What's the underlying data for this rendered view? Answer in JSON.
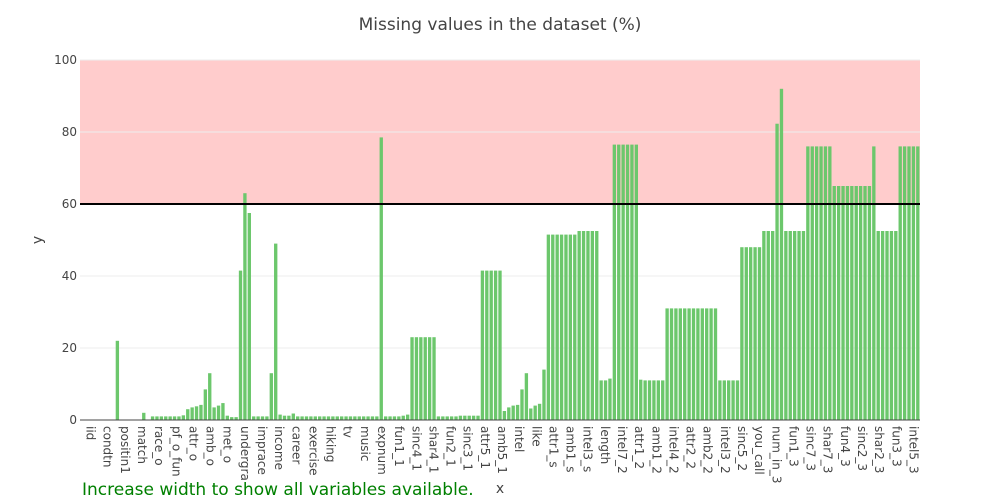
{
  "note": "Increase width to show all variables available.",
  "colors": {
    "bar": "#6cc76c",
    "danger_zone": "#ffcccc",
    "threshold_line": "#000000",
    "note": "#008000"
  },
  "chart_data": {
    "type": "bar",
    "title": "Missing values in the dataset (%)",
    "xlabel": "x",
    "ylabel": "y",
    "ylim": [
      0,
      100
    ],
    "yticks": [
      0,
      20,
      40,
      60,
      80,
      100
    ],
    "threshold": 60,
    "shaded_range": [
      60,
      100
    ],
    "grid": true,
    "tick_labels": [
      "iid",
      "condtn",
      "positin1",
      "match",
      "race_o",
      "pf_o_fun",
      "attr_o",
      "amb_o",
      "met_o",
      "undergra",
      "imprace",
      "income",
      "career",
      "exercise",
      "hiking",
      "tv",
      "music",
      "expnum",
      "fun1_1",
      "sinc4_1",
      "shar4_1",
      "fun2_1",
      "sinc3_1",
      "attr5_1",
      "amb5_1",
      "intel",
      "like",
      "attr1_s",
      "amb1_s",
      "intel3_s",
      "length",
      "intel7_2",
      "attr1_2",
      "amb1_2",
      "intel4_2",
      "attr2_2",
      "amb2_2",
      "intel3_2",
      "sinc5_2",
      "you_call",
      "num_in_3",
      "fun1_3",
      "sinc7_3",
      "shar7_3",
      "fun4_3",
      "sinc2_3",
      "shar2_3",
      "fun3_3",
      "intel5_3"
    ],
    "values": [
      0,
      0,
      0,
      0,
      0,
      0,
      0,
      0,
      22,
      0,
      0,
      0,
      0,
      0,
      2,
      0,
      1,
      1,
      1,
      1,
      1,
      1,
      1,
      1.3,
      3,
      3.5,
      3.8,
      4.2,
      8.5,
      13,
      3.5,
      4,
      4.7,
      1.2,
      0.8,
      0.8,
      41.5,
      63,
      57.5,
      1,
      1,
      1,
      1,
      13,
      49,
      1.5,
      1.2,
      1.2,
      1.8,
      1,
      1,
      1,
      1,
      1,
      1,
      1,
      1,
      1,
      1,
      1,
      1,
      1,
      1,
      1,
      1,
      1,
      1,
      1,
      78.5,
      1,
      1,
      1,
      1,
      1.2,
      1.5,
      23,
      23,
      23,
      23,
      23,
      23,
      1,
      1,
      1,
      1,
      1,
      1.2,
      1.2,
      1.2,
      1.2,
      1.2,
      41.5,
      41.5,
      41.5,
      41.5,
      41.5,
      2.5,
      3.5,
      4,
      4.2,
      8.5,
      13,
      3.2,
      4,
      4.5,
      14,
      51.5,
      51.5,
      51.5,
      51.5,
      51.5,
      51.5,
      51.5,
      52.5,
      52.5,
      52.5,
      52.5,
      52.5,
      11,
      11,
      11.5,
      76.5,
      76.5,
      76.5,
      76.5,
      76.5,
      76.5,
      11.2,
      11,
      11,
      11,
      11,
      11,
      31,
      31,
      31,
      31,
      31,
      31,
      31,
      31,
      31,
      31,
      31,
      31,
      11,
      11,
      11,
      11,
      11,
      48,
      48,
      48,
      48,
      48,
      52.5,
      52.5,
      52.5,
      82.3,
      92,
      52.5,
      52.5,
      52.5,
      52.5,
      52.5,
      76,
      76,
      76,
      76,
      76,
      76,
      65,
      65,
      65,
      65,
      65,
      65,
      65,
      65,
      65,
      76,
      52.5,
      52.5,
      52.5,
      52.5,
      52.5,
      76,
      76,
      76,
      76,
      76
    ]
  }
}
